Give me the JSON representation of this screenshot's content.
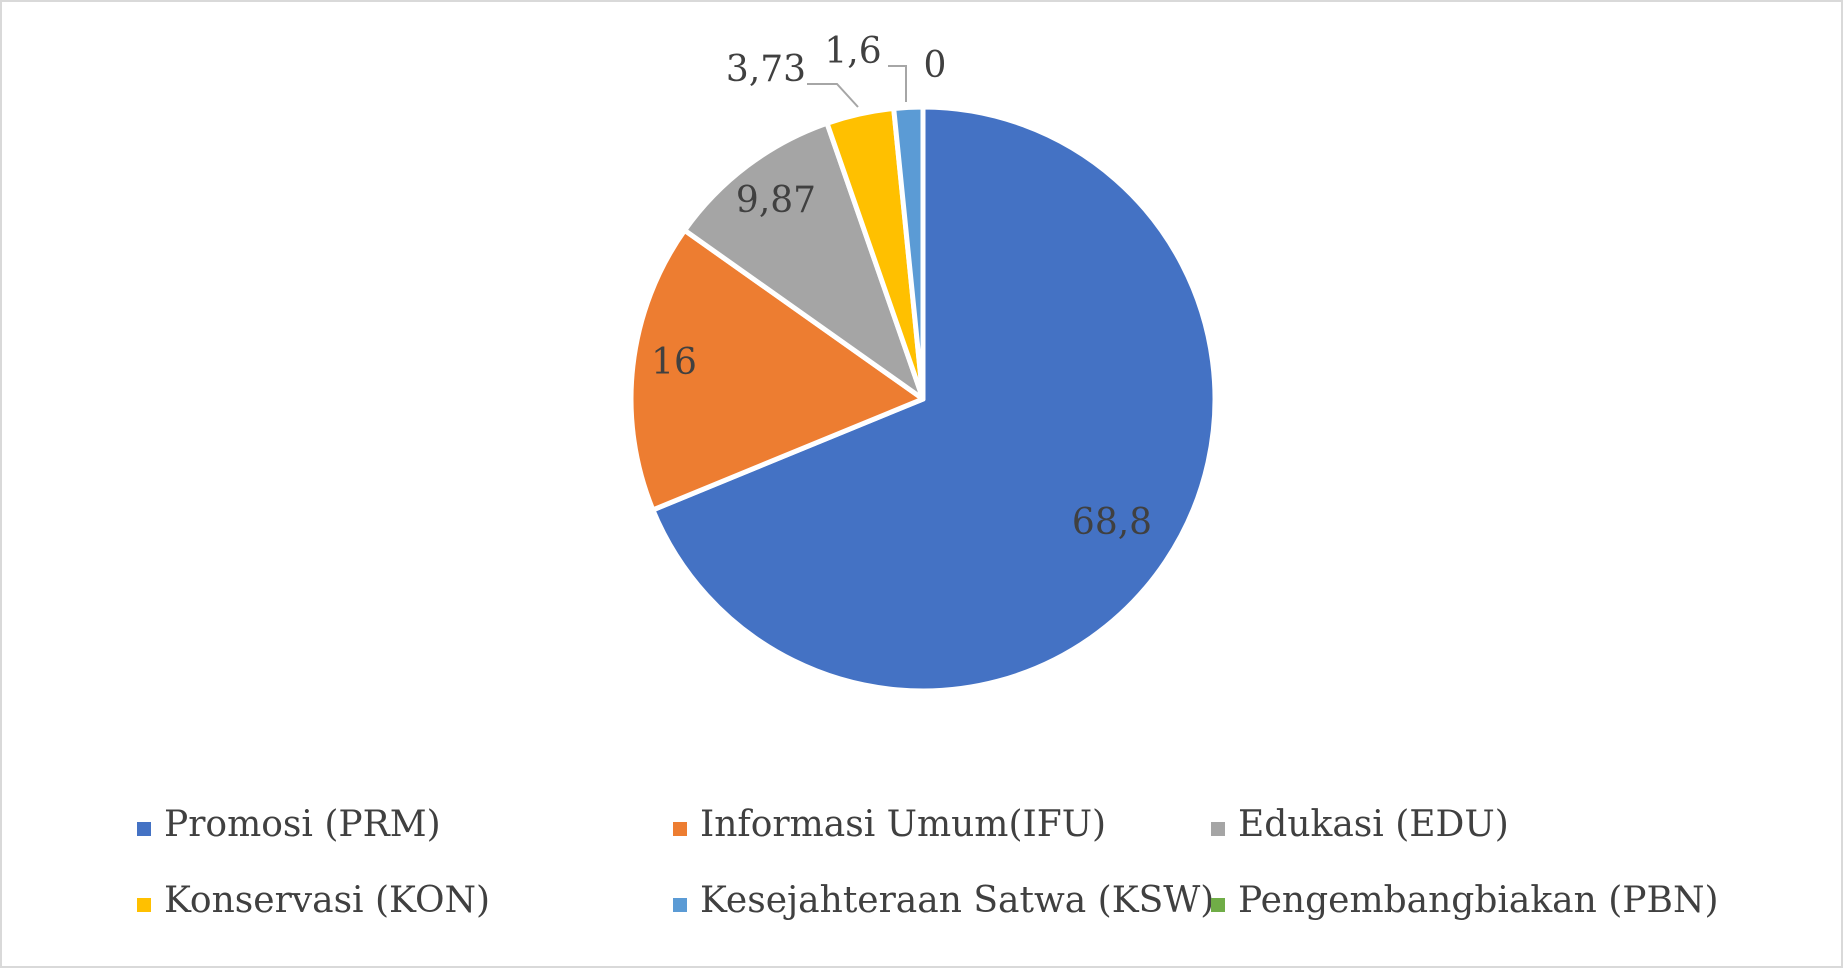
{
  "chart_data": {
    "type": "pie",
    "title": "",
    "categories": [
      "Promosi (PRM)",
      "Informasi Umum(IFU)",
      "Edukasi (EDU)",
      "Konservasi (KON)",
      "Kesejahteraan Satwa (KSW)",
      "Pengembangbiakan (PBN)"
    ],
    "values": [
      68.8,
      16,
      9.87,
      3.73,
      1.6,
      0
    ],
    "data_labels": [
      "68,8",
      "16",
      "9,87",
      "3,73",
      "1,6",
      "0"
    ],
    "colors": [
      "#4472C4",
      "#ED7D31",
      "#A5A5A5",
      "#FFC000",
      "#5B9BD5",
      "#70AD47"
    ],
    "legend_position": "bottom",
    "start_angle_deg": 0,
    "direction": "clockwise"
  }
}
